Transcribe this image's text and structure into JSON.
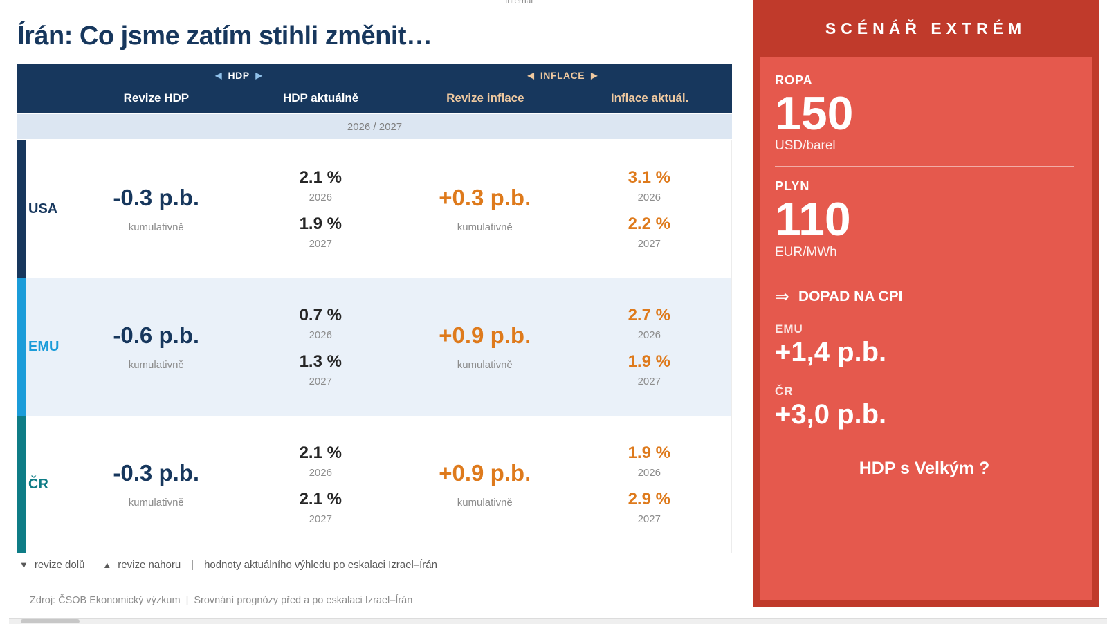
{
  "meta": {
    "internal_label": "Internal"
  },
  "title": "Írán: Co jsme zatím stihli změnit…",
  "colors": {
    "navy": "#17375D",
    "orange": "#DE7A1C",
    "header_bg": "#17375D",
    "band_bg": "#DCE6F2",
    "tan": "#EFC9A0",
    "light_blue_arrow": "#8FC0E9",
    "panel_dark_red": "#C03A2B",
    "panel_light_red": "#E5594D"
  },
  "table": {
    "nav": {
      "left_arrow": "◀",
      "right_arrow": "▶",
      "hdp_label": "HDP",
      "inflace_label": "INFLACE"
    },
    "columns": [
      "Revize HDP",
      "HDP aktuálně",
      "Revize inflace",
      "Inflace aktuál."
    ],
    "period": "2026 / 2027",
    "rows": [
      {
        "label": "USA",
        "accent": "#17375D",
        "bg": "#FFFFFF",
        "revize_hdp": "-0.3 p.b.",
        "revize_hdp_note": "kumulativně",
        "hdp_2026": "2.1 %",
        "hdp_2026_year": "2026",
        "hdp_2027": "1.9 %",
        "hdp_2027_year": "2027",
        "revize_inflace": "+0.3 p.b.",
        "revize_inflace_note": "kumulativně",
        "inf_2026": "3.1 %",
        "inf_2026_year": "2026",
        "inf_2027": "2.2 %",
        "inf_2027_year": "2027"
      },
      {
        "label": "EMU",
        "accent": "#1B9CD9",
        "bg": "#EAF1F9",
        "revize_hdp": "-0.6 p.b.",
        "revize_hdp_note": "kumulativně",
        "hdp_2026": "0.7 %",
        "hdp_2026_year": "2026",
        "hdp_2027": "1.3 %",
        "hdp_2027_year": "2027",
        "revize_inflace": "+0.9 p.b.",
        "revize_inflace_note": "kumulativně",
        "inf_2026": "2.7 %",
        "inf_2026_year": "2026",
        "inf_2027": "1.9 %",
        "inf_2027_year": "2027"
      },
      {
        "label": "ČR",
        "accent": "#0E7C86",
        "bg": "#FFFFFF",
        "revize_hdp": "-0.3 p.b.",
        "revize_hdp_note": "kumulativně",
        "hdp_2026": "2.1 %",
        "hdp_2026_year": "2026",
        "hdp_2027": "2.1 %",
        "hdp_2027_year": "2027",
        "revize_inflace": "+0.9 p.b.",
        "revize_inflace_note": "kumulativně",
        "inf_2026": "1.9 %",
        "inf_2026_year": "2026",
        "inf_2027": "2.9 %",
        "inf_2027_year": "2027"
      }
    ],
    "legend": {
      "down_icon": "▼",
      "down_label": "revize dolů",
      "up_icon": "▲",
      "up_label": "revize nahoru",
      "separator": "|",
      "note": "hodnoty aktuálního výhledu po eskalaci Izrael–Írán"
    }
  },
  "footer": {
    "source_left": "Zdroj: ČSOB Ekonomický výzkum",
    "separator": "|",
    "source_right": "Srovnání prognózy před a po eskalaci Izrael–Írán"
  },
  "scenario": {
    "title": "SCÉNÁŘ EXTRÉM",
    "commodities": [
      {
        "label": "ROPA",
        "value": "150",
        "unit": "USD/barel"
      },
      {
        "label": "PLYN",
        "value": "110",
        "unit": "EUR/MWh"
      }
    ],
    "cpi": {
      "arrow": "⇒",
      "heading": "DOPAD NA CPI",
      "impacts": [
        {
          "label": "EMU",
          "value": "+1,4 p.b."
        },
        {
          "label": "ČR",
          "value": "+3,0 p.b."
        }
      ]
    },
    "question": "HDP s Velkým ?"
  }
}
